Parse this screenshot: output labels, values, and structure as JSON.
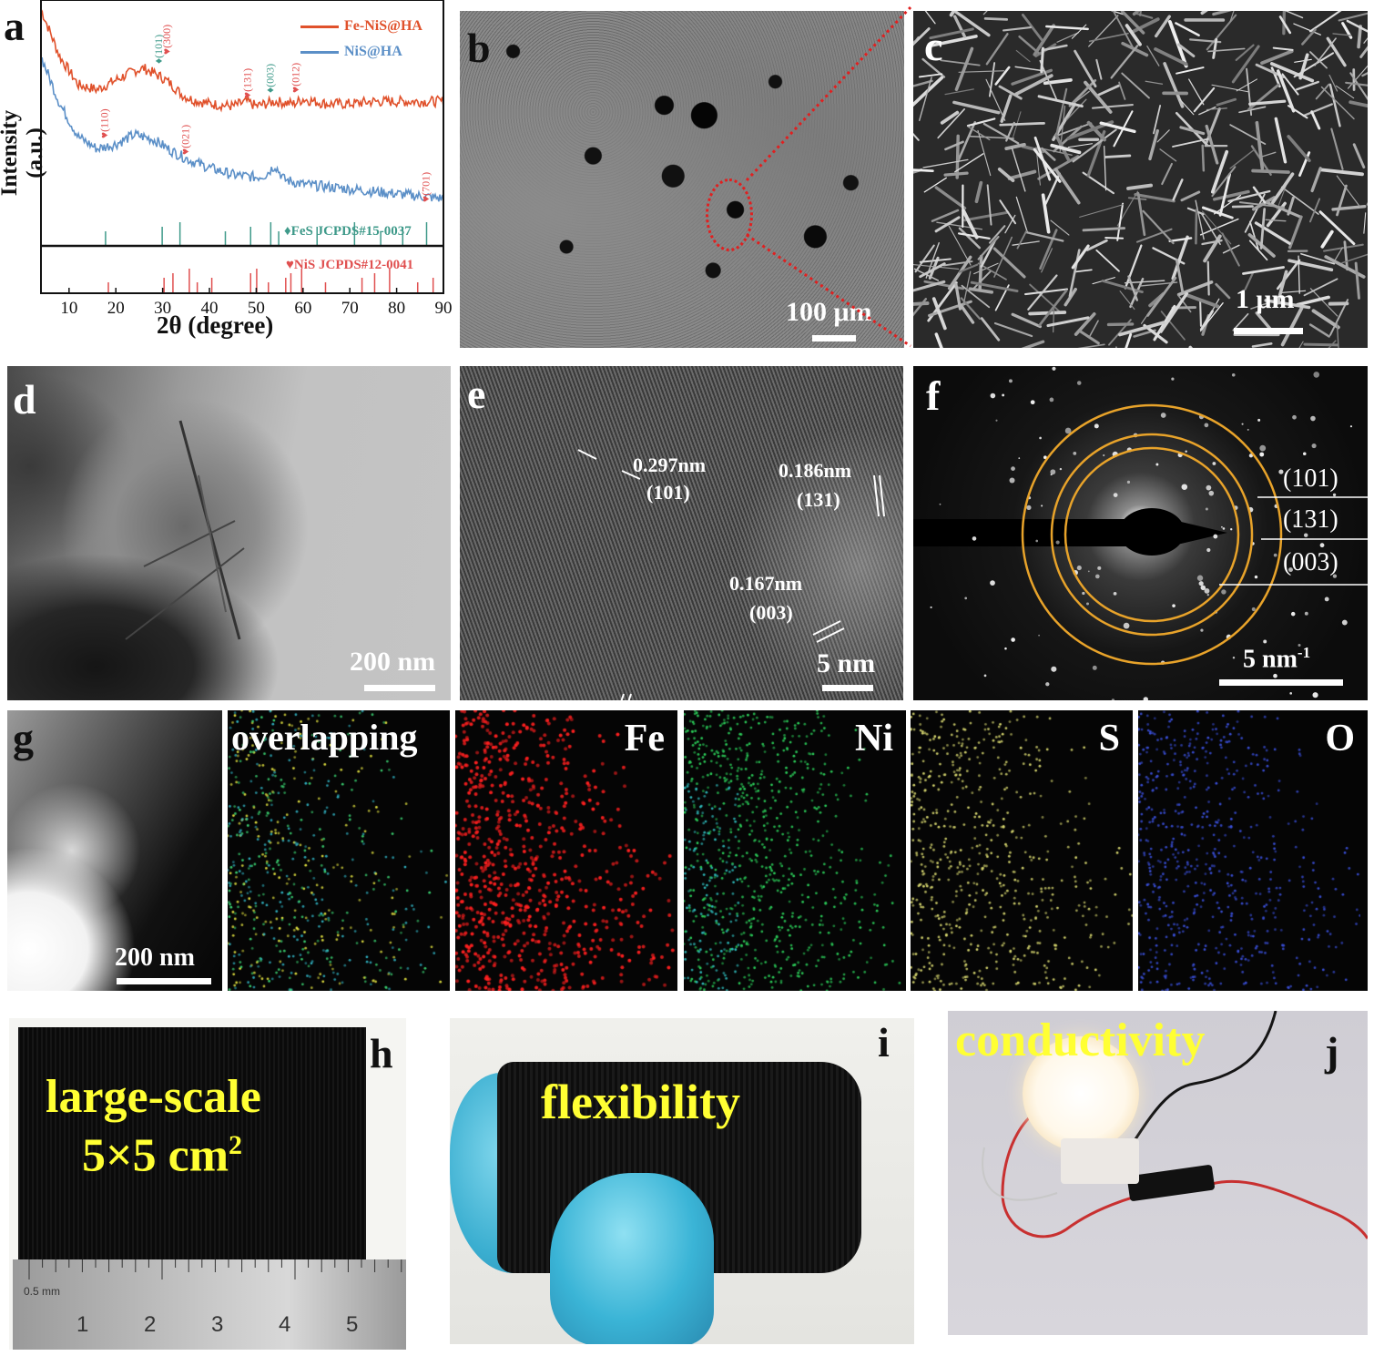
{
  "panel_a": {
    "label": "a",
    "legend": [
      "Fe-NiS@HA",
      "NiS@HA"
    ],
    "xlabel": "2θ (degree)",
    "ylabel": "Intensity (a.u.)",
    "x_ticks": [
      "10",
      "20",
      "30",
      "40",
      "50",
      "60",
      "70",
      "80",
      "90"
    ],
    "fes_ref": "FeS JCPDS#15-0037",
    "nis_ref": "NiS JCPDS#12-0041",
    "fes_peaks": [
      "(101)",
      "(300)",
      "(003)"
    ],
    "nis_peaks": [
      "(131)",
      "(012)",
      "(110)",
      "(021)",
      "(701)"
    ],
    "colors": {
      "fe_nis": "#e0512b",
      "nis": "#5b8fc7",
      "fes_ref": "#3f9a8a",
      "nis_ref": "#e05050"
    }
  },
  "chart_data": {
    "type": "line",
    "xlabel": "2θ (degree)",
    "ylabel": "Intensity (a.u.)",
    "xlim": [
      4,
      90
    ],
    "x_ticks": [
      10,
      20,
      30,
      40,
      50,
      60,
      70,
      80,
      90
    ],
    "series": [
      {
        "name": "Fe-NiS@HA",
        "x": [
          4,
          8,
          12,
          16,
          20,
          24,
          26,
          28,
          30,
          32,
          34,
          36,
          40,
          45,
          48,
          50,
          54,
          58,
          60,
          65,
          70,
          75,
          80,
          85,
          90
        ],
        "y": [
          1.0,
          0.8,
          0.68,
          0.66,
          0.7,
          0.74,
          0.75,
          0.73,
          0.71,
          0.68,
          0.64,
          0.62,
          0.6,
          0.59,
          0.61,
          0.59,
          0.61,
          0.6,
          0.62,
          0.6,
          0.6,
          0.61,
          0.61,
          0.61,
          0.61
        ]
      },
      {
        "name": "NiS@HA",
        "x": [
          4,
          8,
          12,
          16,
          20,
          24,
          28,
          32,
          36,
          40,
          45,
          50,
          52,
          54,
          56,
          60,
          65,
          70,
          75,
          80,
          85,
          90
        ],
        "y": [
          0.8,
          0.6,
          0.46,
          0.41,
          0.43,
          0.47,
          0.45,
          0.4,
          0.36,
          0.33,
          0.3,
          0.29,
          0.3,
          0.34,
          0.28,
          0.26,
          0.25,
          0.24,
          0.23,
          0.22,
          0.21,
          0.2
        ]
      }
    ],
    "references": [
      {
        "name": "FeS JCPDS#15-0037",
        "peaks": [
          17.8,
          29.9,
          33.7,
          43.4,
          48.8,
          53.1,
          54.8,
          63.0,
          71.0,
          76.6,
          81.3,
          86.4
        ]
      },
      {
        "name": "NiS JCPDS#12-0041",
        "peaks": [
          18.4,
          30.3,
          32.2,
          35.7,
          37.4,
          40.5,
          48.8,
          50.1,
          52.6,
          56.3,
          57.4,
          59.7,
          64.8,
          72.6,
          75.3,
          78.5,
          84.5,
          87.8
        ]
      }
    ]
  },
  "panel_b": {
    "label": "b",
    "scale": "100 μm"
  },
  "panel_c": {
    "label": "c",
    "scale": "1 μm"
  },
  "panel_d": {
    "label": "d",
    "scale": "200 nm"
  },
  "panel_e": {
    "label": "e",
    "scale": "5 nm",
    "fringes": [
      {
        "d": "0.297nm",
        "plane": "(101)"
      },
      {
        "d": "0.186nm",
        "plane": "(131)"
      },
      {
        "d": "0.167nm",
        "plane": "(003)"
      }
    ]
  },
  "panel_f": {
    "label": "f",
    "scale": "5 nm",
    "scale_sup": "-1",
    "rings": [
      "(101)",
      "(131)",
      "(003)"
    ],
    "ring_color": "#e8a32a"
  },
  "panel_g": {
    "label": "g",
    "scale": "200 nm",
    "maps": [
      {
        "name": "overlapping",
        "color": "#b8d04a"
      },
      {
        "name": "Fe",
        "color": "#ff2020"
      },
      {
        "name": "Ni",
        "color": "#2ccf5a"
      },
      {
        "name": "S",
        "color": "#d8d870"
      },
      {
        "name": "O",
        "color": "#3a4fd8"
      }
    ]
  },
  "panel_h": {
    "label": "h",
    "text1": "large-scale",
    "text2": "5×5 cm",
    "text2_sup": "2",
    "ruler_unit": "0.5 mm",
    "ruler_numbers": [
      "1",
      "2",
      "3",
      "4",
      "5"
    ]
  },
  "panel_i": {
    "label": "i",
    "text": "flexibility"
  },
  "panel_j": {
    "label": "j",
    "text": "conductivity"
  }
}
